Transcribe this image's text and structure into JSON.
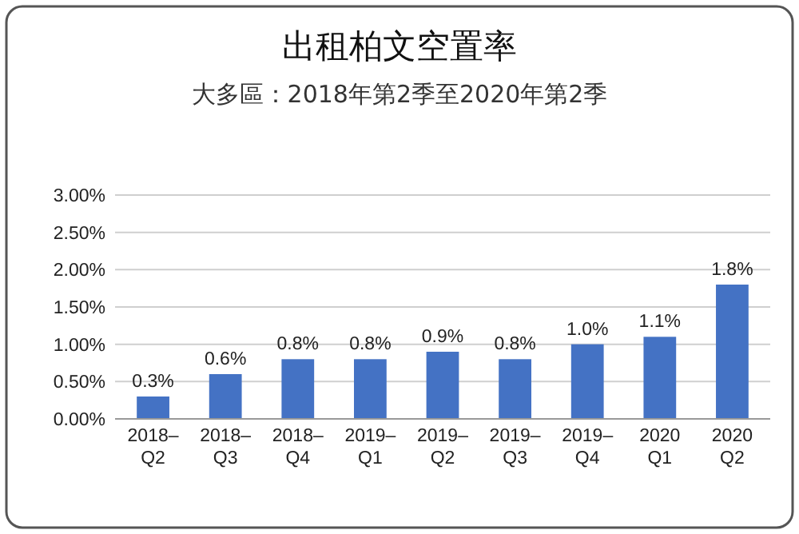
{
  "chart_data": {
    "type": "bar",
    "title": "出租柏文空置率",
    "subtitle": "大多區：2018年第2季至2020年第2季",
    "categories": [
      "2018–\nQ2",
      "2018–\nQ3",
      "2018–\nQ4",
      "2019–\nQ1",
      "2019–\nQ2",
      "2019–\nQ3",
      "2019–\nQ4",
      "2020\nQ1",
      "2020\nQ2"
    ],
    "values": [
      0.3,
      0.6,
      0.8,
      0.8,
      0.9,
      0.8,
      1.0,
      1.1,
      1.8
    ],
    "value_labels": [
      "0.3%",
      "0.6%",
      "0.8%",
      "0.8%",
      "0.9%",
      "0.8%",
      "1.0%",
      "1.1%",
      "1.8%"
    ],
    "color": "#4472c4",
    "ylim": [
      0,
      3
    ],
    "yticks": [
      {
        "value": 0,
        "label": "0.00%"
      },
      {
        "value": 0.5,
        "label": "0.50%"
      },
      {
        "value": 1,
        "label": "1.00%"
      },
      {
        "value": 1.5,
        "label": "1.50%"
      },
      {
        "value": 2,
        "label": "2.00%"
      },
      {
        "value": 2.5,
        "label": "2.50%"
      },
      {
        "value": 3,
        "label": "3.00%"
      }
    ],
    "grid": "y"
  }
}
